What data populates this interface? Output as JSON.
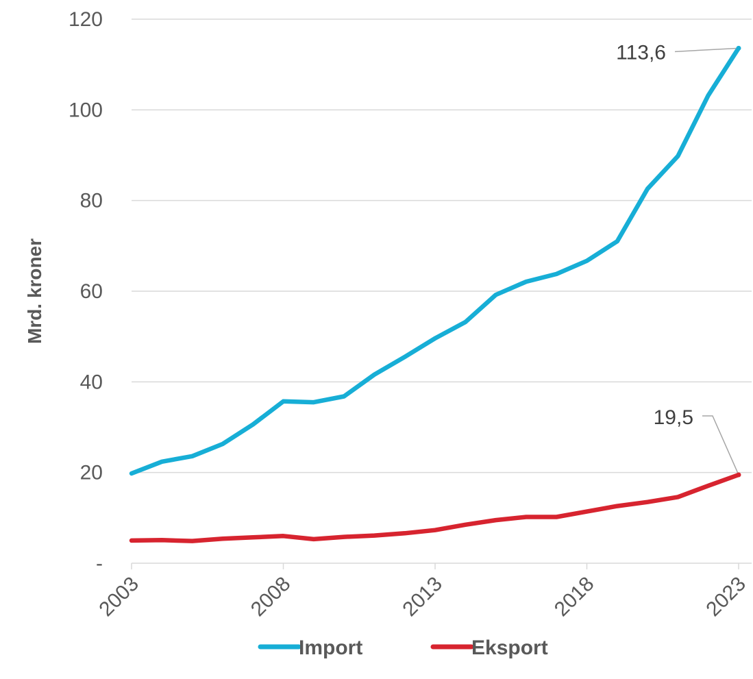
{
  "chart_data": {
    "type": "line",
    "ylabel": "Mrd. kroner",
    "ylim": [
      0,
      120
    ],
    "yticks": [
      {
        "value": 0,
        "label": "-"
      },
      {
        "value": 20,
        "label": "20"
      },
      {
        "value": 40,
        "label": "40"
      },
      {
        "value": 60,
        "label": "60"
      },
      {
        "value": 80,
        "label": "80"
      },
      {
        "value": 100,
        "label": "100"
      },
      {
        "value": 120,
        "label": "120"
      }
    ],
    "xlim": [
      2003,
      2023
    ],
    "xticks": [
      "2003",
      "2008",
      "2013",
      "2018",
      "2023"
    ],
    "grid": "horizontal",
    "legend_position": "bottom",
    "x": [
      2003,
      2004,
      2005,
      2006,
      2007,
      2008,
      2009,
      2010,
      2011,
      2012,
      2013,
      2014,
      2015,
      2016,
      2017,
      2018,
      2019,
      2020,
      2021,
      2022,
      2023
    ],
    "series": [
      {
        "name": "Import",
        "color": "#17AED6",
        "values": [
          19.8,
          22.4,
          23.6,
          26.3,
          30.6,
          35.7,
          35.5,
          36.8,
          41.6,
          45.5,
          49.6,
          53.2,
          59.2,
          62.1,
          63.8,
          66.7,
          71.0,
          82.6,
          89.8,
          103.2,
          113.6
        ]
      },
      {
        "name": "Eksport",
        "color": "#D7242F",
        "values": [
          5.0,
          5.1,
          4.9,
          5.4,
          5.7,
          6.0,
          5.3,
          5.8,
          6.1,
          6.6,
          7.3,
          8.5,
          9.5,
          10.2,
          10.2,
          11.4,
          12.6,
          13.5,
          14.6,
          17.1,
          19.5
        ]
      }
    ],
    "annotations": [
      {
        "series": "Import",
        "label": "113,6"
      },
      {
        "series": "Eksport",
        "label": "19,5"
      }
    ]
  }
}
